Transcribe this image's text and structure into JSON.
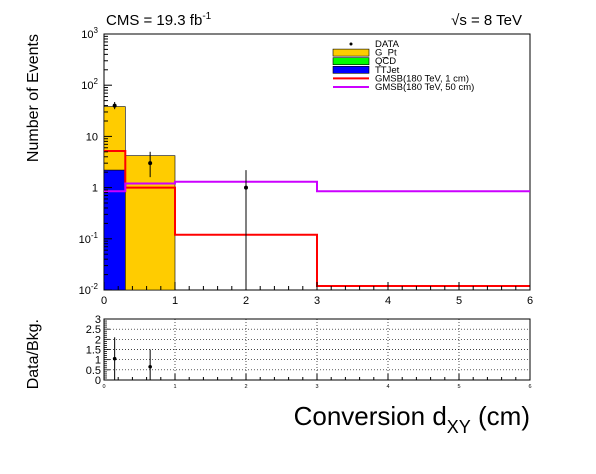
{
  "chart_data": [
    {
      "type": "bar",
      "subtype": "stacked-histogram-with-data-points",
      "xscale": "linear",
      "yscale": "log",
      "xlim": [
        0,
        6
      ],
      "ylim": [
        0.01,
        1000
      ],
      "grid": false,
      "legend_position": "top-right",
      "ylabel": "Number of Events",
      "header_left": {
        "main": "CMS = 19.3 fb",
        "sup": "-1"
      },
      "header_right": {
        "sqrt": "√",
        "main": "s = 8 TeV"
      },
      "x_tick_labels": [
        "0",
        "1",
        "2",
        "3",
        "4",
        "5",
        "6"
      ],
      "y_tick_labels": [
        {
          "base": "10",
          "exp": "-2"
        },
        {
          "base": "10",
          "exp": "-1"
        },
        {
          "base": "1",
          "exp": ""
        },
        {
          "base": "10",
          "exp": ""
        },
        {
          "base": "10",
          "exp": "2"
        },
        {
          "base": "10",
          "exp": "3"
        }
      ],
      "x_bin_edges": [
        0,
        0.3,
        1,
        3,
        6
      ],
      "stack": [
        {
          "name": "TTJet",
          "color": "#0000ff",
          "values": [
            2.2,
            0,
            0,
            0
          ]
        },
        {
          "name": "QCD",
          "color": "#00ff00",
          "values": [
            0,
            0,
            0,
            0
          ]
        },
        {
          "name": "G_Pt",
          "color": "#ffcc00",
          "values": [
            36,
            4.2,
            0,
            0
          ]
        }
      ],
      "signals": [
        {
          "name": "GMSB(180 TeV, 1 cm)",
          "color": "#ff0000",
          "x_bin_edges": [
            0,
            0.3,
            1,
            3,
            6
          ],
          "values": [
            5.2,
            1.0,
            0.12,
            0.012
          ]
        },
        {
          "name": "GMSB(180 TeV, 50 cm)",
          "color": "#cc00ff",
          "x_bin_edges": [
            0,
            0.3,
            1,
            3,
            6
          ],
          "values": [
            0.85,
            1.2,
            1.3,
            0.85
          ]
        }
      ],
      "data_points": {
        "name": "DATA",
        "points": [
          {
            "x": 0.15,
            "y": 40,
            "ylow": 34,
            "yhigh": 47
          },
          {
            "x": 0.65,
            "y": 3,
            "ylow": 1.6,
            "yhigh": 5
          },
          {
            "x": 2.0,
            "y": 1,
            "ylow": 0.01,
            "yhigh": 2.2
          }
        ]
      },
      "legend": [
        {
          "label": "DATA",
          "kind": "marker",
          "color": "#000000"
        },
        {
          "label": "G_Pt",
          "kind": "box",
          "color": "#ffcc00"
        },
        {
          "label": "QCD",
          "kind": "box",
          "color": "#00ff00"
        },
        {
          "label": "TTJet",
          "kind": "box",
          "color": "#0000ff"
        },
        {
          "label": "GMSB(180 TeV, 1 cm)",
          "kind": "line",
          "color": "#ff0000"
        },
        {
          "label": "GMSB(180 TeV, 50 cm)",
          "kind": "line",
          "color": "#cc00ff"
        }
      ]
    },
    {
      "type": "scatter",
      "xlim": [
        0,
        6
      ],
      "ylim": [
        0,
        3
      ],
      "grid": true,
      "ylabel": "Data/Bkg.",
      "xlabel": {
        "main": "Conversion d",
        "sub": "XY",
        "suffix": " (cm)"
      },
      "x_tick_labels": [
        "0",
        "1",
        "2",
        "3",
        "4",
        "5",
        "6"
      ],
      "y_tick_labels": [
        "0",
        "0.5",
        "1",
        "1.5",
        "2",
        "2.5",
        "3"
      ],
      "points": [
        {
          "x": 0.15,
          "y": 1.05,
          "ylow": 0,
          "yhigh": 2.1
        },
        {
          "x": 0.65,
          "y": 0.65,
          "ylow": 0,
          "yhigh": 1.5
        }
      ]
    }
  ]
}
